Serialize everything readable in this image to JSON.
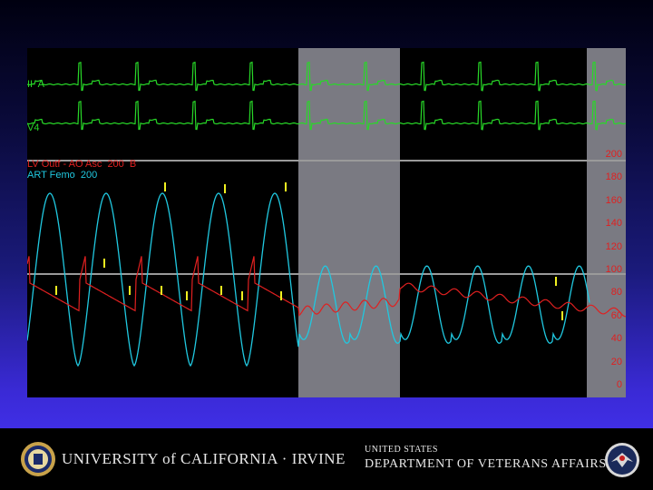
{
  "monitor": {
    "leads": [
      {
        "label": "II  A"
      },
      {
        "label": "V4"
      }
    ],
    "pressure_labels": {
      "lv": "LV Outf - AO Asc  200  B",
      "art": "ART Femo  200"
    },
    "scale_ticks": [
      "200",
      "180",
      "160",
      "140",
      "120",
      "100",
      "80",
      "60",
      "40",
      "20",
      "0"
    ],
    "colors": {
      "ecg": "#28d828",
      "lv": "#e02020",
      "art": "#20c8e0",
      "marker": "#f0f020",
      "highlight": "#7a7a82"
    }
  },
  "footer": {
    "university": "UNIVERSITY of CALIFORNIA · IRVINE",
    "va_line1": "UNITED STATES",
    "va_line2": "DEPARTMENT OF VETERANS AFFAIRS"
  }
}
